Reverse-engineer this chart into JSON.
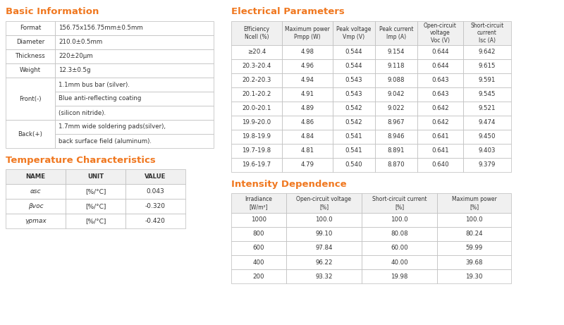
{
  "title_color": "#F07820",
  "text_color": "#333333",
  "border_color": "#BBBBBB",
  "bg_color": "#FFFFFF",
  "header_bg": "#F0F0F0",
  "basic_info_title": "Basic Information",
  "temp_title": "Temperature Characteristics",
  "elec_title": "Electrical Parameters",
  "intensity_title": "Intensity Dependence",
  "basic_info_merged": [
    {
      "label": "Format",
      "value": "156.75x156.75mm±0.5mm",
      "span": 1
    },
    {
      "label": "Diameter",
      "value": "210.0±0.5mm",
      "span": 1
    },
    {
      "label": "Thickness",
      "value": "220±20μm",
      "span": 1
    },
    {
      "label": "Weight",
      "value": "12.3±0.5g",
      "span": 1
    },
    {
      "label": "Front(-)",
      "value": "1.1mm bus bar (silver).",
      "span": 3
    },
    {
      "label": "",
      "value": "Blue anti-reflecting coating",
      "span": 0
    },
    {
      "label": "",
      "value": "(silicon nitride).",
      "span": 0
    },
    {
      "label": "Back(+)",
      "value": "1.7mm wide soldering pads(silver),",
      "span": 2
    },
    {
      "label": "",
      "value": "back surface field (aluminum).",
      "span": 0
    }
  ],
  "temp_headers": [
    "NAME",
    "UNIT",
    "VALUE"
  ],
  "temp_rows": [
    [
      "αsc",
      "[%/°C]",
      "0.043"
    ],
    [
      "βvoc",
      "[%/°C]",
      "-0.320"
    ],
    [
      "γpmax",
      "[%/°C]",
      "-0.420"
    ]
  ],
  "elec_headers": [
    "Efficiency\nNcell (%)",
    "Maximum power\nPmpp (W)",
    "Peak voltage\nVmp (V)",
    "Peak current\nImp (A)",
    "Open-circuit\nvoltage\nVoc (V)",
    "Short-circuit\ncurrent\nIsc (A)"
  ],
  "elec_rows": [
    [
      "≥20.4",
      "4.98",
      "0.544",
      "9.154",
      "0.644",
      "9.642"
    ],
    [
      "20.3-20.4",
      "4.96",
      "0.544",
      "9.118",
      "0.644",
      "9.615"
    ],
    [
      "20.2-20.3",
      "4.94",
      "0.543",
      "9.088",
      "0.643",
      "9.591"
    ],
    [
      "20.1-20.2",
      "4.91",
      "0.543",
      "9.042",
      "0.643",
      "9.545"
    ],
    [
      "20.0-20.1",
      "4.89",
      "0.542",
      "9.022",
      "0.642",
      "9.521"
    ],
    [
      "19.9-20.0",
      "4.86",
      "0.542",
      "8.967",
      "0.642",
      "9.474"
    ],
    [
      "19.8-19.9",
      "4.84",
      "0.541",
      "8.946",
      "0.641",
      "9.450"
    ],
    [
      "19.7-19.8",
      "4.81",
      "0.541",
      "8.891",
      "0.641",
      "9.403"
    ],
    [
      "19.6-19.7",
      "4.79",
      "0.540",
      "8.870",
      "0.640",
      "9.379"
    ]
  ],
  "intensity_headers": [
    "Irradiance\n[W/m²]",
    "Open-circuit voltage\n[%]",
    "Short-circuit current\n[%]",
    "Maximum power\n[%]"
  ],
  "intensity_rows": [
    [
      "1000",
      "100.0",
      "100.0",
      "100.0"
    ],
    [
      "800",
      "99.10",
      "80.08",
      "80.24"
    ],
    [
      "600",
      "97.84",
      "60.00",
      "59.99"
    ],
    [
      "400",
      "96.22",
      "40.00",
      "39.68"
    ],
    [
      "200",
      "93.32",
      "19.98",
      "19.30"
    ]
  ]
}
